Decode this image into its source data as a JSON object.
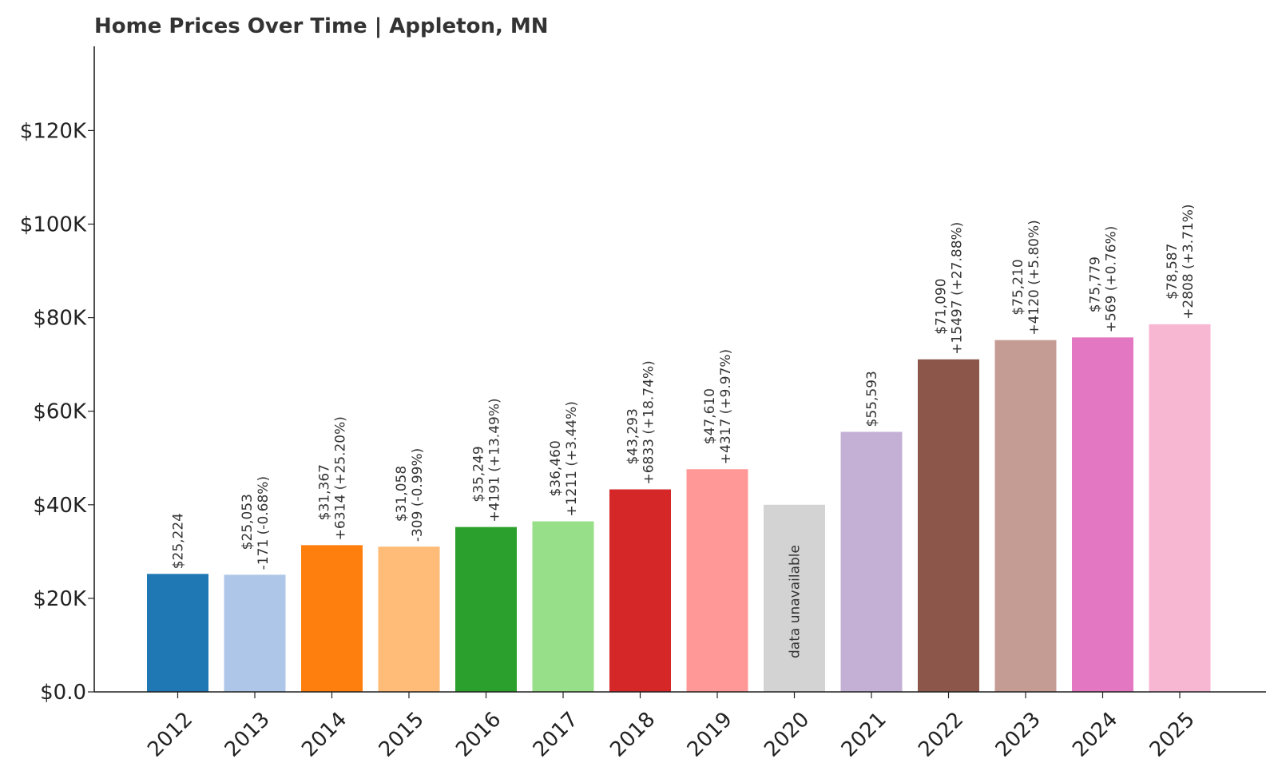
{
  "chart_data": {
    "type": "bar",
    "title": "Home Prices Over Time | Appleton, MN",
    "xlabel": "",
    "ylabel": "",
    "ylim": [
      0,
      138000
    ],
    "yticks": [
      {
        "value": 0,
        "label": "$0.0"
      },
      {
        "value": 20000,
        "label": "$20K"
      },
      {
        "value": 40000,
        "label": "$40K"
      },
      {
        "value": 60000,
        "label": "$60K"
      },
      {
        "value": 80000,
        "label": "$80K"
      },
      {
        "value": 100000,
        "label": "$100K"
      },
      {
        "value": 120000,
        "label": "$120K"
      }
    ],
    "grid": false,
    "legend": "none",
    "categories": [
      "2012",
      "2013",
      "2014",
      "2015",
      "2016",
      "2017",
      "2018",
      "2019",
      "2020",
      "2021",
      "2022",
      "2023",
      "2024",
      "2025"
    ],
    "values": [
      25224,
      25053,
      31367,
      31058,
      35249,
      36460,
      43293,
      47610,
      40000,
      55593,
      71090,
      75210,
      75779,
      78587
    ],
    "available": [
      true,
      true,
      true,
      true,
      true,
      true,
      true,
      true,
      false,
      true,
      true,
      true,
      true,
      true
    ],
    "colors": [
      "#1f77b4",
      "#aec7e8",
      "#ff7f0e",
      "#ffbb78",
      "#2ca02c",
      "#98df8a",
      "#d62728",
      "#ff9896",
      "#d3d3d3",
      "#c5b0d5",
      "#8c564b",
      "#c49c94",
      "#e377c2",
      "#f7b6d2"
    ],
    "value_labels": [
      "$25,224",
      "$25,053",
      "$31,367",
      "$31,058",
      "$35,249",
      "$36,460",
      "$43,293",
      "$47,610",
      "",
      "$55,593",
      "$71,090",
      "$75,210",
      "$75,779",
      "$78,587"
    ],
    "change_labels": [
      "",
      "-171 (-0.68%)",
      "+6314 (+25.20%)",
      "-309 (-0.99%)",
      "+4191 (+13.49%)",
      "+1211 (+3.44%)",
      "+6833 (+18.74%)",
      "+4317 (+9.97%)",
      "",
      "",
      "+15497 (+27.88%)",
      "+4120 (+5.80%)",
      "+569 (+0.76%)",
      "+2808 (+3.71%)"
    ],
    "unavailable_label": "data unavailable"
  }
}
